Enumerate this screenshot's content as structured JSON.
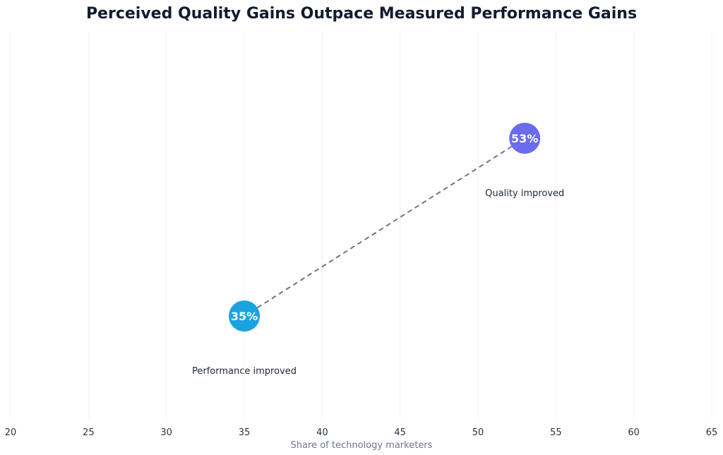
{
  "chart_data": {
    "type": "scatter",
    "title": "Perceived Quality Gains Outpace Measured Performance Gains",
    "xlabel": "Share of technology marketers",
    "ylabel": "",
    "xlim": [
      20,
      65
    ],
    "xticks": [
      20,
      25,
      30,
      35,
      40,
      45,
      50,
      55,
      60,
      65
    ],
    "grid": "vertical",
    "points": [
      {
        "name": "Performance improved",
        "x": 35,
        "label": "35%",
        "color": "#1ba3e0"
      },
      {
        "name": "Quality improved",
        "x": 53,
        "label": "53%",
        "color": "#6b6cec"
      }
    ],
    "connector": {
      "style": "dashed",
      "color": "#6c7689"
    }
  }
}
